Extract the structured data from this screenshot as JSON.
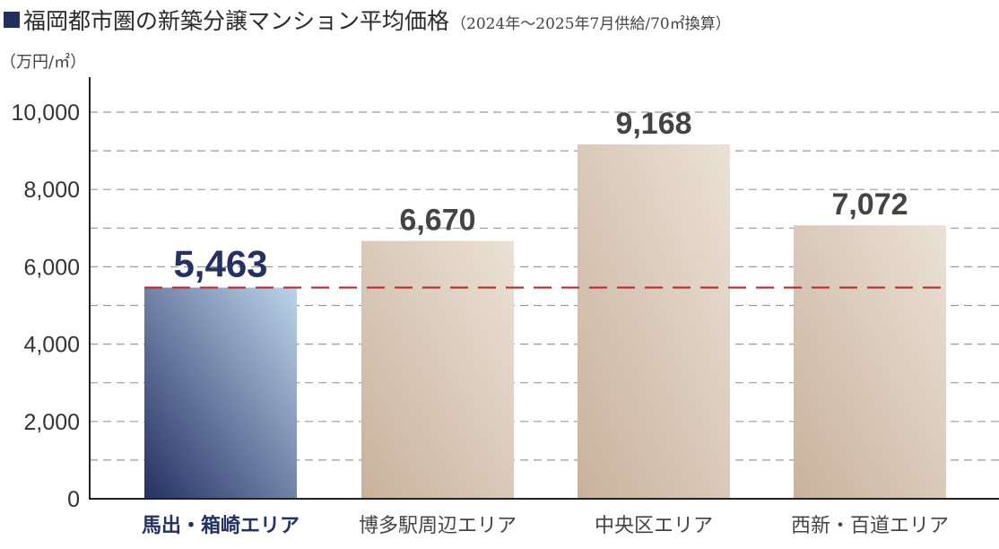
{
  "title": {
    "main": "福岡都市圏の新築分譲マンション平均価格",
    "sub": "（2024年〜2025年7月供給/70㎡換算）"
  },
  "chart_data": {
    "type": "bar",
    "unit_label": "（万円/㎡）",
    "categories": [
      "馬出・箱崎エリア",
      "博多駅周辺エリア",
      "中央区エリア",
      "西新・百道エリア"
    ],
    "values": [
      5463,
      6670,
      9168,
      7072
    ],
    "value_labels": [
      "5,463",
      "6,670",
      "9,168",
      "7,072"
    ],
    "highlight_index": 0,
    "reference_line": 5463,
    "ylim": [
      0,
      10000
    ],
    "y_ticks": [
      0,
      2000,
      4000,
      6000,
      8000,
      10000
    ],
    "y_tick_labels": [
      "0",
      "2,000",
      "4,000",
      "6,000",
      "8,000",
      "10,000"
    ],
    "minor_gridlines": [
      1000,
      3000,
      5000,
      7000,
      9000
    ],
    "grid": true,
    "colors": {
      "highlight_bar_dark": "#243163",
      "highlight_bar_light": "#bcd4ea",
      "bar_dark": "#c9b29c",
      "bar_light": "#ebe1d6",
      "highlight_text": "#243163",
      "value_text": "#444444",
      "reference_line": "#c0282d",
      "grid": "#9a9a9a",
      "axis": "#222222"
    }
  }
}
